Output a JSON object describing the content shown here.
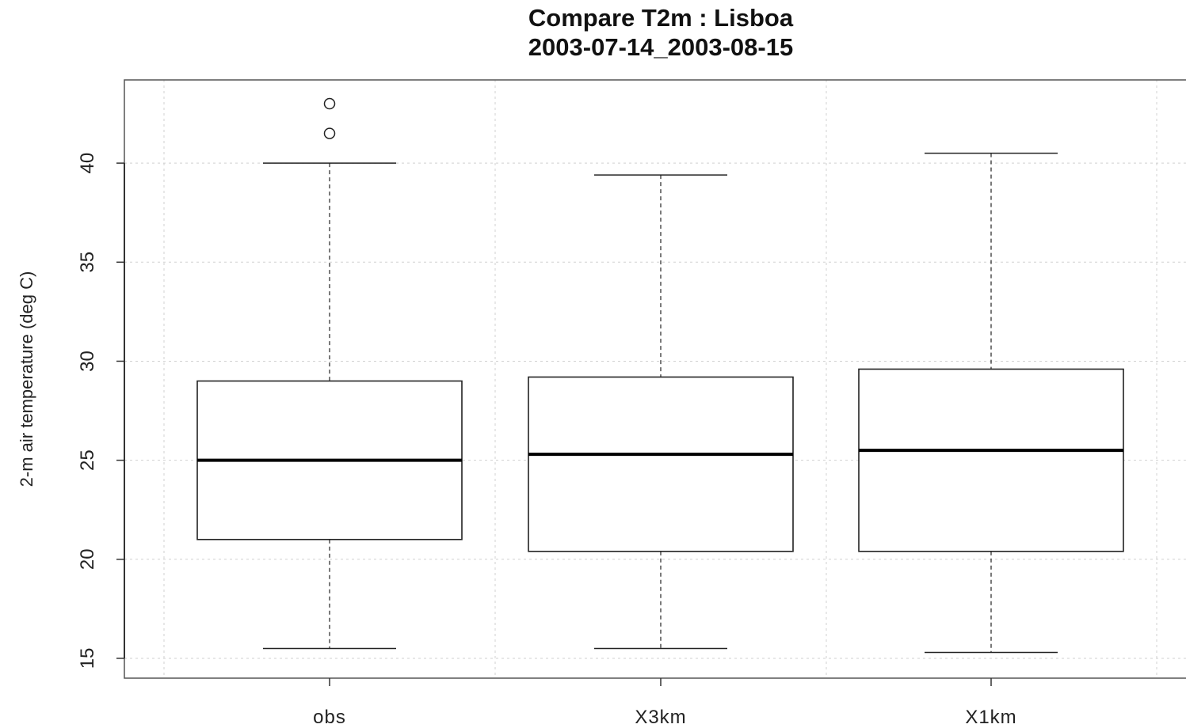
{
  "chart_data": {
    "type": "boxplot",
    "title": "Compare T2m : Lisboa",
    "subtitle": "2003-07-14_2003-08-15",
    "ylabel": "2-m air temperature (deg C)",
    "xlabel": "",
    "ylim": [
      14,
      44.2
    ],
    "yticks": [
      15,
      20,
      25,
      30,
      35,
      40
    ],
    "grid": true,
    "categories": [
      "obs",
      "X3km",
      "X1km"
    ],
    "boxes": [
      {
        "name": "obs",
        "whisker_low": 15.5,
        "q1": 21.0,
        "median": 25.0,
        "q3": 29.0,
        "whisker_high": 40.0,
        "outliers": [
          41.5,
          43.0
        ]
      },
      {
        "name": "X3km",
        "whisker_low": 15.5,
        "q1": 20.4,
        "median": 25.3,
        "q3": 29.2,
        "whisker_high": 39.4,
        "outliers": []
      },
      {
        "name": "X1km",
        "whisker_low": 15.3,
        "q1": 20.4,
        "median": 25.5,
        "q3": 29.6,
        "whisker_high": 40.5,
        "outliers": []
      }
    ]
  }
}
